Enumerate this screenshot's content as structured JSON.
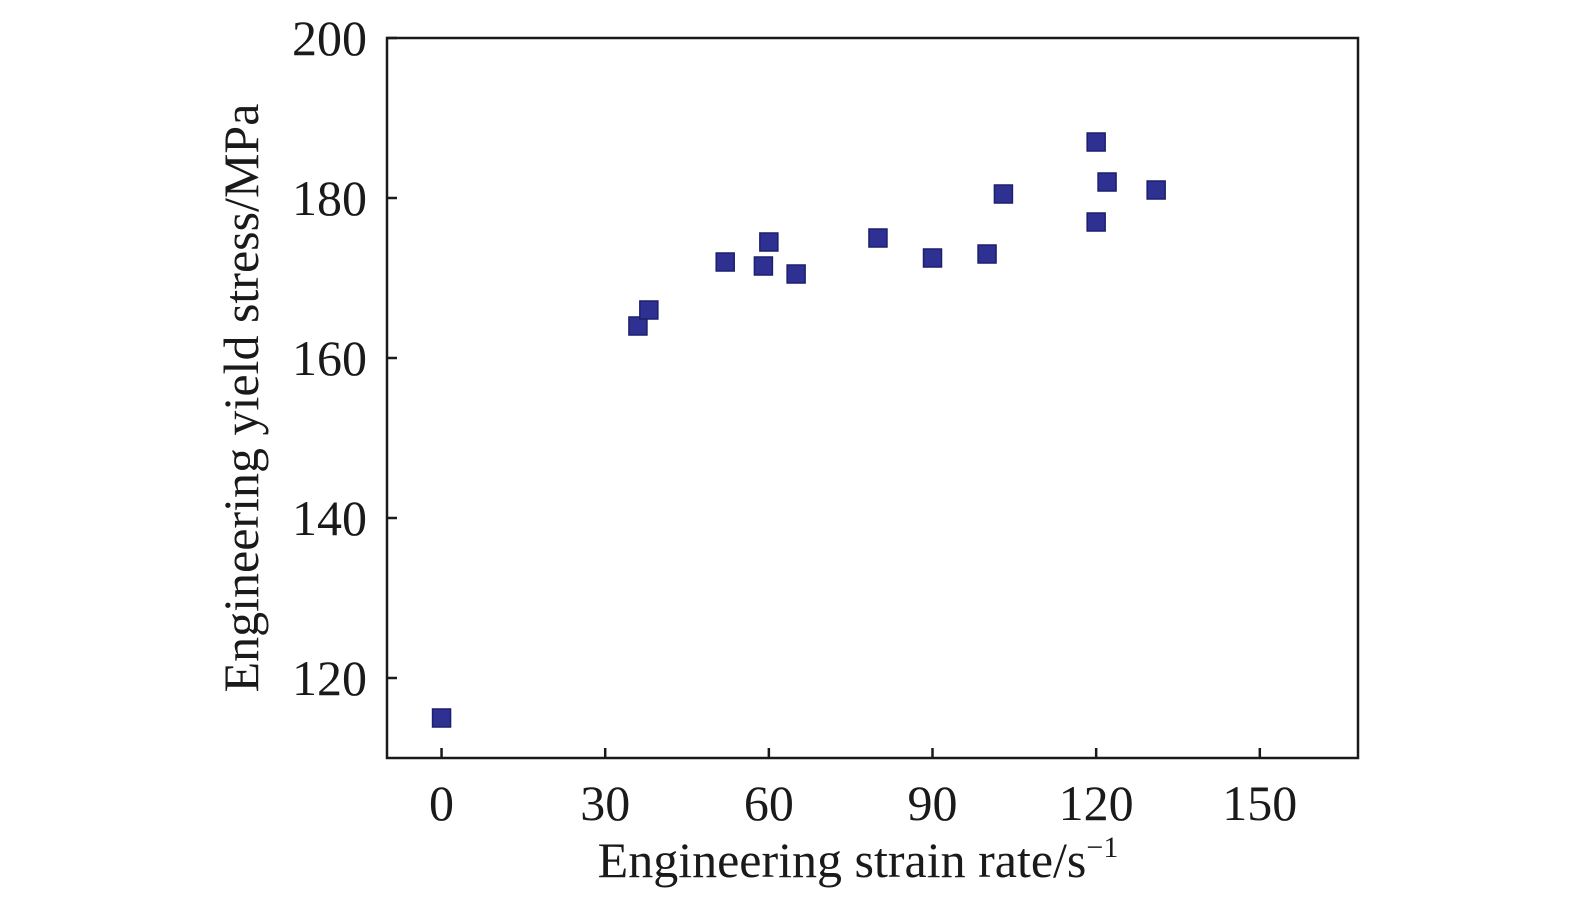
{
  "chart_data": {
    "type": "scatter",
    "title": "",
    "xlabel": "Engineering strain rate/s",
    "xlabel_superscript": "−1",
    "ylabel": "Engineering yield stress/MPa",
    "xlim": [
      -10,
      168
    ],
    "ylim": [
      110,
      200
    ],
    "xticks": [
      0,
      30,
      60,
      90,
      120,
      150
    ],
    "yticks": [
      120,
      140,
      160,
      180,
      200
    ],
    "xtick_labels": [
      "0",
      "30",
      "60",
      "90",
      "120",
      "150"
    ],
    "ytick_labels": [
      "120",
      "140",
      "160",
      "180",
      "200"
    ],
    "grid": false,
    "legend": "none",
    "marker": "square",
    "marker_color": "#2e3192",
    "series": [
      {
        "points": [
          {
            "x": 0,
            "y": 115
          },
          {
            "x": 36,
            "y": 164
          },
          {
            "x": 38,
            "y": 166
          },
          {
            "x": 52,
            "y": 172
          },
          {
            "x": 59,
            "y": 171.5
          },
          {
            "x": 60,
            "y": 174.5
          },
          {
            "x": 65,
            "y": 170.5
          },
          {
            "x": 80,
            "y": 175
          },
          {
            "x": 90,
            "y": 172.5
          },
          {
            "x": 100,
            "y": 173
          },
          {
            "x": 103,
            "y": 180.5
          },
          {
            "x": 120,
            "y": 187
          },
          {
            "x": 120,
            "y": 177
          },
          {
            "x": 122,
            "y": 182
          },
          {
            "x": 131,
            "y": 181
          }
        ]
      }
    ]
  }
}
